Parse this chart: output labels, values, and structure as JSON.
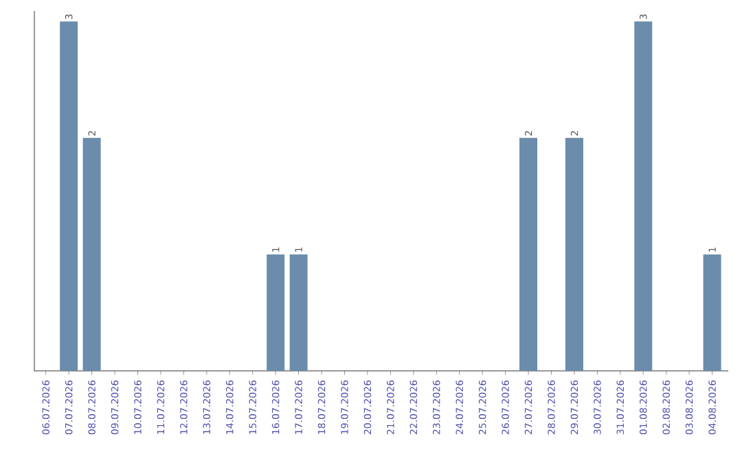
{
  "chart_data": {
    "type": "bar",
    "categories": [
      "06.07.2026",
      "07.07.2026",
      "08.07.2026",
      "09.07.2026",
      "10.07.2026",
      "11.07.2026",
      "12.07.2026",
      "13.07.2026",
      "14.07.2026",
      "15.07.2026",
      "16.07.2026",
      "17.07.2026",
      "18.07.2026",
      "19.07.2026",
      "20.07.2026",
      "21.07.2026",
      "22.07.2026",
      "23.07.2026",
      "24.07.2026",
      "25.07.2026",
      "26.07.2026",
      "27.07.2026",
      "28.07.2026",
      "29.07.2026",
      "30.07.2026",
      "31.07.2026",
      "01.08.2026",
      "02.08.2026",
      "03.08.2026",
      "04.08.2026"
    ],
    "values": [
      0,
      3,
      2,
      0,
      0,
      0,
      0,
      0,
      0,
      0,
      1,
      1,
      0,
      0,
      0,
      0,
      0,
      0,
      0,
      0,
      0,
      2,
      0,
      2,
      0,
      0,
      3,
      0,
      0,
      1
    ],
    "value_labels": [
      null,
      "3",
      "2",
      null,
      null,
      null,
      null,
      null,
      null,
      null,
      "1",
      "1",
      null,
      null,
      null,
      null,
      null,
      null,
      null,
      null,
      null,
      "2",
      null,
      "2",
      null,
      null,
      "3",
      null,
      null,
      "1"
    ],
    "color": "#6b8caa"
  }
}
